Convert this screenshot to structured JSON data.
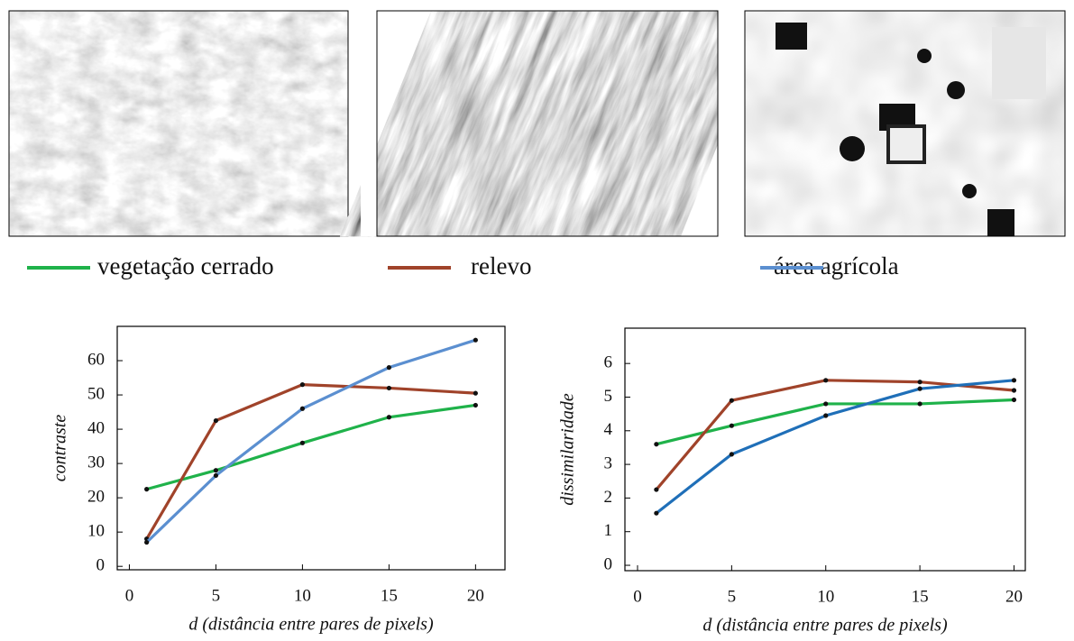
{
  "chart_data": [
    {
      "type": "line",
      "ylabel": "contraste",
      "xlabel": "d (distância entre pares de pixels)",
      "x": [
        1,
        5,
        10,
        15,
        20
      ],
      "xlim": [
        -0.7,
        21.7
      ],
      "xticks": [
        0,
        5,
        10,
        15,
        20
      ],
      "ylim": [
        -1,
        70
      ],
      "yticks": [
        0,
        10,
        20,
        30,
        40,
        50,
        60
      ],
      "series": [
        {
          "name": "vegetação cerrado",
          "color": "#1fb24a",
          "values": [
            22.5,
            28,
            36,
            43.5,
            47
          ]
        },
        {
          "name": "relevo",
          "color": "#a0432a",
          "values": [
            8,
            42.5,
            53,
            52,
            50.5
          ]
        },
        {
          "name": "área agrícola",
          "color": "#5b8fd0",
          "values": [
            7,
            26.5,
            46,
            58,
            66
          ]
        }
      ]
    },
    {
      "type": "line",
      "ylabel": "dissimilaridade",
      "xlabel": "d (distância entre pares de pixels)",
      "x": [
        1,
        5,
        10,
        15,
        20
      ],
      "xlim": [
        -0.67,
        20.6
      ],
      "xticks": [
        0,
        5,
        10,
        15,
        20
      ],
      "ylim": [
        -0.16,
        7.05
      ],
      "yticks": [
        0,
        1,
        2,
        3,
        4,
        5,
        6
      ],
      "series": [
        {
          "color": "#1fb24a",
          "values": [
            3.6,
            4.15,
            4.8,
            4.8,
            4.92
          ]
        },
        {
          "color": "#a0432a",
          "values": [
            2.25,
            4.9,
            5.5,
            5.45,
            5.2
          ]
        },
        {
          "color": "#1f6fb8",
          "values": [
            1.55,
            3.3,
            4.45,
            5.25,
            5.5
          ]
        }
      ]
    }
  ]
}
